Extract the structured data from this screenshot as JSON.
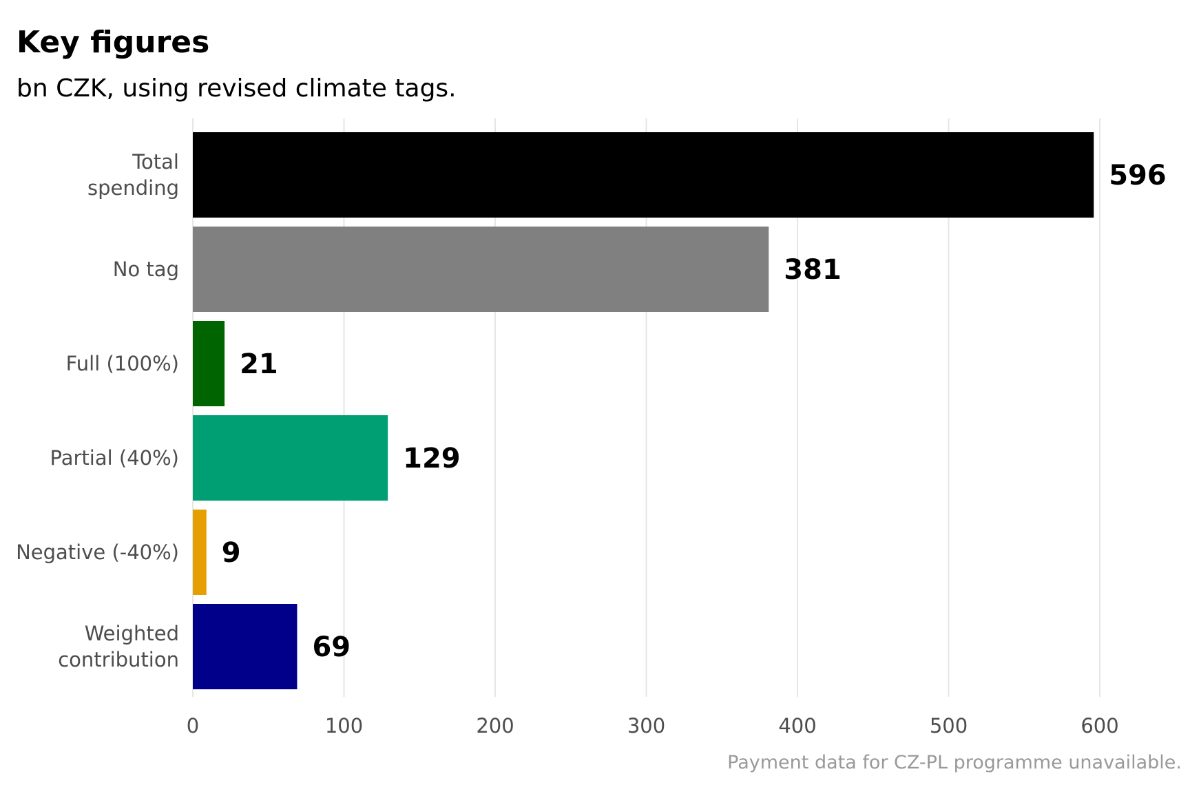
{
  "chart_data": {
    "type": "bar",
    "orientation": "horizontal",
    "title": "Key figures",
    "subtitle": "bn CZK, using revised climate tags.",
    "caption": "Payment data for CZ-PL programme unavailable.",
    "categories": [
      [
        "Total",
        "spending"
      ],
      [
        "No tag"
      ],
      [
        "Full (100%)"
      ],
      [
        "Partial (40%)"
      ],
      [
        "Negative (-40%)"
      ],
      [
        "Weighted",
        "contribution"
      ]
    ],
    "values": [
      596,
      381,
      21,
      129,
      9,
      69
    ],
    "data_labels": [
      "596",
      "381",
      "21",
      "129",
      "9",
      "69"
    ],
    "colors": [
      "#000000",
      "#808080",
      "#006400",
      "#009E73",
      "#E69F00",
      "#00008B"
    ],
    "xlim": [
      0,
      620
    ],
    "x_ticks": [
      0,
      100,
      200,
      300,
      400,
      500,
      600
    ],
    "x_tick_labels": [
      "0",
      "100",
      "200",
      "300",
      "400",
      "500",
      "600"
    ],
    "xlabel": "",
    "ylabel": "",
    "grid": true,
    "legend": "none"
  }
}
